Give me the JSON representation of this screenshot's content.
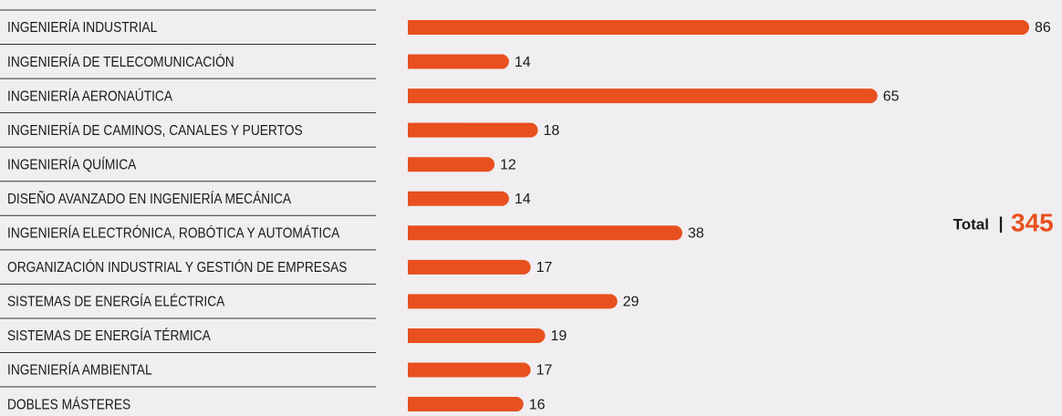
{
  "chart_data": {
    "type": "bar",
    "orientation": "horizontal",
    "categories": [
      "INGENIERÍA INDUSTRIAL",
      "INGENIERÍA DE TELECOMUNICACIÓN",
      "INGENIERÍA AERONAÚTICA",
      "INGENIERÍA DE CAMINOS, CANALES Y PUERTOS",
      "INGENIERÍA QUÍMICA",
      "DISEÑO AVANZADO EN INGENIERÍA MECÁNICA",
      "INGENIERÍA ELECTRÓNICA, ROBÓTICA Y AUTOMÁTICA",
      "ORGANIZACIÓN INDUSTRIAL Y GESTIÓN DE EMPRESAS",
      "SISTEMAS DE ENERGÍA ELÉCTRICA",
      "SISTEMAS DE ENERGÍA TÉRMICA",
      "INGENIERÍA AMBIENTAL",
      "DOBLES MÁSTERES"
    ],
    "values": [
      86,
      14,
      65,
      18,
      12,
      14,
      38,
      17,
      29,
      19,
      17,
      16
    ],
    "color": "#e8501f",
    "total": {
      "label": "Total",
      "value": 345
    }
  }
}
